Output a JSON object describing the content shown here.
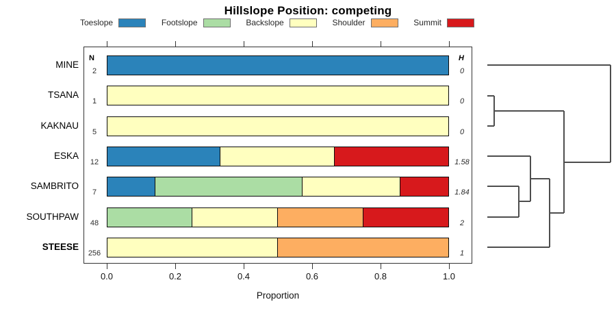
{
  "title": "Hillslope Position: competing",
  "chart_data": {
    "type": "bar",
    "stacked": true,
    "orientation": "horizontal",
    "title": "Hillslope Position: competing",
    "xlabel": "Proportion",
    "xlim": [
      0,
      1
    ],
    "xticks": [
      0.0,
      0.2,
      0.4,
      0.6,
      0.8,
      1.0
    ],
    "xtick_labels": [
      "0.0",
      "0.2",
      "0.4",
      "0.6",
      "0.8",
      "1.0"
    ],
    "grid": false,
    "legend_position": "top",
    "n_header": "N",
    "h_header": "H",
    "categories": [
      "MINE",
      "TSANA",
      "KAKNAU",
      "ESKA",
      "SAMBRITO",
      "SOUTHPAW",
      "STEESE"
    ],
    "bold_category": "STEESE",
    "n_values": [
      "2",
      "1",
      "5",
      "12",
      "7",
      "48",
      "256"
    ],
    "h_values": [
      "0",
      "0",
      "0",
      "1.58",
      "1.84",
      "2",
      "1"
    ],
    "legend": [
      {
        "label": "Toeslope",
        "color": "#2B83BA"
      },
      {
        "label": "Footslope",
        "color": "#ABDDA4"
      },
      {
        "label": "Backslope",
        "color": "#FFFFBF"
      },
      {
        "label": "Shoulder",
        "color": "#FDAE61"
      },
      {
        "label": "Summit",
        "color": "#D7191C"
      }
    ],
    "series": [
      {
        "name": "Toeslope",
        "values": [
          1.0,
          0,
          0,
          0.333,
          0.143,
          0,
          0
        ]
      },
      {
        "name": "Footslope",
        "values": [
          0,
          0,
          0,
          0,
          0.429,
          0.25,
          0
        ]
      },
      {
        "name": "Backslope",
        "values": [
          0,
          1.0,
          1.0,
          0.333,
          0.286,
          0.25,
          0.5
        ]
      },
      {
        "name": "Shoulder",
        "values": [
          0,
          0,
          0,
          0,
          0,
          0.25,
          0.5
        ]
      },
      {
        "name": "Summit",
        "values": [
          0,
          0,
          0,
          0.334,
          0.142,
          0.25,
          0
        ]
      }
    ],
    "dendrogram": {
      "description": "hierarchical clustering of sites, drawn right of plot",
      "segments": [
        [
          712,
          95,
          892,
          95
        ],
        [
          712,
          140,
          722,
          140
        ],
        [
          712,
          184,
          722,
          184
        ],
        [
          722,
          162,
          824,
          162
        ],
        [
          712,
          228,
          775,
          228
        ],
        [
          712,
          272,
          758,
          272
        ],
        [
          712,
          317,
          758,
          317
        ],
        [
          758,
          294,
          775,
          294
        ],
        [
          775,
          261,
          803,
          261
        ],
        [
          712,
          361,
          803,
          361
        ],
        [
          803,
          311,
          824,
          311
        ],
        [
          824,
          237,
          892,
          237
        ],
        [
          722,
          140,
          722,
          184
        ],
        [
          758,
          272,
          758,
          317
        ],
        [
          775,
          228,
          775,
          294
        ],
        [
          803,
          261,
          803,
          361
        ],
        [
          824,
          162,
          824,
          311
        ],
        [
          892,
          95,
          892,
          237
        ]
      ]
    }
  }
}
